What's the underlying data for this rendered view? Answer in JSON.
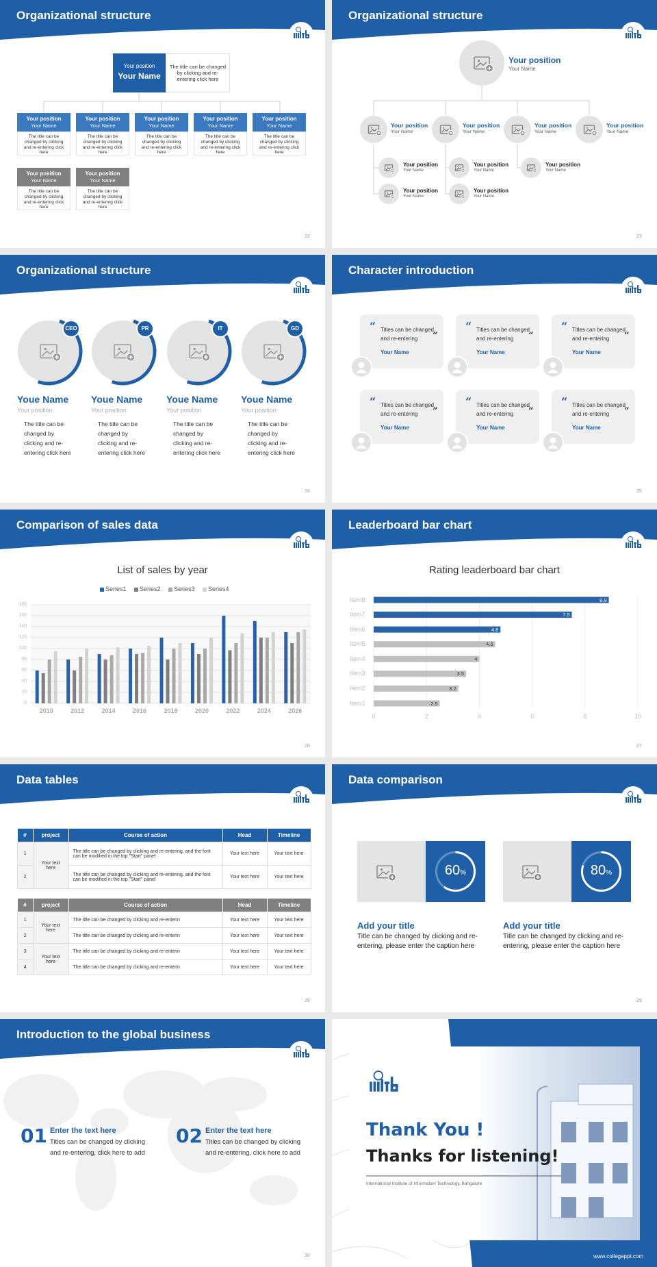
{
  "slides": [
    {
      "title": "Organizational structure",
      "page": "22",
      "head": {
        "position": "Your position",
        "name": "Your Name",
        "caption": "The title can be changed by clicking and re-entering click here"
      },
      "members": [
        {
          "position": "Your position",
          "name": "Your Name",
          "caption": "The title can be changed by clicking and re-entering click here",
          "color": "#3a78c0"
        },
        {
          "position": "Your position",
          "name": "Your Name",
          "caption": "The title can be changed by clicking and re-entering click here",
          "color": "#3a78c0"
        },
        {
          "position": "Your position",
          "name": "Your Name",
          "caption": "The title can be changed by clicking and re-entering click here",
          "color": "#3a78c0"
        },
        {
          "position": "Your position",
          "name": "Your Name",
          "caption": "The title can be changed by clicking and re-entering click here",
          "color": "#3a78c0"
        },
        {
          "position": "Your position",
          "name": "Your Name",
          "caption": "The title can be changed by clicking and re-entering click here",
          "color": "#3a78c0"
        },
        {
          "position": "Your position",
          "name": "Your Name",
          "caption": "The title can be changed by clicking and re-entering click here",
          "color": "#808080"
        },
        {
          "position": "Your position",
          "name": "Your Name",
          "caption": "The title can be changed by clicking and re-entering click here",
          "color": "#808080"
        }
      ]
    },
    {
      "title": "Organizational structure",
      "page": "23",
      "head": {
        "position": "Your position",
        "name": "Your Name"
      },
      "managers": [
        {
          "position": "Your position",
          "name": "Your Name"
        },
        {
          "position": "Your position",
          "name": "Your Name"
        },
        {
          "position": "Your position",
          "name": "Your Name"
        },
        {
          "position": "Your position",
          "name": "Your Name"
        }
      ],
      "staff": [
        {
          "position": "Your position",
          "name": "Your Name"
        },
        {
          "position": "Your position",
          "name": "Your Name"
        },
        {
          "position": "Your position",
          "name": "Your Name"
        },
        {
          "position": "Your position",
          "name": "Your Name"
        },
        {
          "position": "Your position",
          "name": "Your Name"
        }
      ]
    },
    {
      "title": "Organizational structure",
      "page": "24",
      "members": [
        {
          "tag": "CEO",
          "name": "Youe Name",
          "position": "Your position",
          "caption": "The title can be changed by clicking and re-entering click here"
        },
        {
          "tag": "PR",
          "name": "Youe Name",
          "position": "Your position",
          "caption": "The title can be changed by clicking and re-entering click here"
        },
        {
          "tag": "IT",
          "name": "Youe Name",
          "position": "Your position",
          "caption": "The title can be changed by clicking and re-entering click here"
        },
        {
          "tag": "GD",
          "name": "Youe Name",
          "position": "Your position",
          "caption": "The title can be changed by clicking and re-entering click here"
        }
      ]
    },
    {
      "title": "Character introduction",
      "page": "25",
      "quote_open": "“",
      "quote_close": "”",
      "cards": [
        {
          "text": "Titles can be changed and re-entering",
          "name": "Your Name"
        },
        {
          "text": "Titles can be changed and re-entering",
          "name": "Your Name"
        },
        {
          "text": "Titles can be changed and re-entering",
          "name": "Your Name"
        },
        {
          "text": "Titles can be changed and re-entering",
          "name": "Your Name"
        },
        {
          "text": "Titles can be changed and re-entering",
          "name": "Your Name"
        },
        {
          "text": "Titles can be changed and re-entering",
          "name": "Your Name"
        }
      ]
    },
    {
      "title": "Comparison of sales data",
      "page": "26"
    },
    {
      "title": "Leaderboard bar chart",
      "page": "27"
    },
    {
      "title": "Data tables",
      "page": "28",
      "tables": [
        {
          "header": [
            "#",
            "project",
            "Course of action",
            "Head",
            "Timeline"
          ],
          "color": "#1f5fa8",
          "projects": [
            "Your text here"
          ],
          "rows": [
            [
              "1",
              "The title can be changed by clicking and re-entering, and the font can be modified in the top \"Start\" panel",
              "Your text here",
              "Your text here"
            ],
            [
              "2",
              "The title can be changed by clicking and re-entering, and the font can be modified in the top \"Start\" panel",
              "Your text here",
              "Your text here"
            ]
          ]
        },
        {
          "header": [
            "#",
            "project",
            "Course of action",
            "Head",
            "Timeline"
          ],
          "color": "#808080",
          "projects": [
            "Your text here",
            "Your text here"
          ],
          "rows": [
            [
              "1",
              "The title can be changed by clicking and re-enterin",
              "Your text here",
              "Your text here"
            ],
            [
              "2",
              "The title can be changed by clicking and re-enterin",
              "Your text here",
              "Your text here"
            ],
            [
              "3",
              "The title can be changed by clicking and re-enterin",
              "Your text here",
              "Your text here"
            ],
            [
              "4",
              "The title can be changed by clicking and re-enterin",
              "Your text here",
              "Your text here"
            ]
          ]
        }
      ]
    },
    {
      "title": "Data comparison",
      "page": "29",
      "items": [
        {
          "value": 60,
          "unit": "%",
          "title": "Add your title",
          "caption": "Title can be changed by clicking and re-entering, please enter the caption here"
        },
        {
          "value": 80,
          "unit": "%",
          "title": "Add your title",
          "caption": "Title can be changed by clicking and re-entering, please enter the caption here"
        }
      ]
    },
    {
      "title": "Introduction to the global business",
      "page": "30",
      "items": [
        {
          "num": "01",
          "title": "Enter the text here",
          "caption": "Titles can be changed by clicking and re-entering, click here to add"
        },
        {
          "num": "02",
          "title": "Enter the text here",
          "caption": "Titles can be changed by clicking and re-entering, click here to add"
        }
      ]
    },
    {
      "thanks": "Thank You !",
      "subtitle": "Thanks for listening!",
      "institute": "International Institute of Information Technology, Bangalore",
      "url": "www.collegeppt.com"
    }
  ],
  "chart_data": [
    {
      "type": "bar",
      "title": "List of sales by year",
      "categories": [
        "2010",
        "2012",
        "2014",
        "2016",
        "2018",
        "2020",
        "2022",
        "2024",
        "2026"
      ],
      "series": [
        {
          "name": "Series1",
          "color": "#2a62a8",
          "values": [
            60,
            80,
            90,
            100,
            120,
            110,
            160,
            150,
            130
          ]
        },
        {
          "name": "Series2",
          "color": "#7f7f7f",
          "values": [
            55,
            60,
            80,
            90,
            80,
            90,
            97,
            120,
            110
          ]
        },
        {
          "name": "Series3",
          "color": "#a9a9a9",
          "values": [
            80,
            85,
            88,
            92,
            100,
            100,
            110,
            120,
            130
          ]
        },
        {
          "name": "Series4",
          "color": "#d2d2d2",
          "values": [
            95,
            100,
            102,
            105,
            110,
            120,
            128,
            130,
            135
          ]
        }
      ],
      "ylim": [
        0,
        180
      ],
      "yticks": [
        0,
        20,
        40,
        60,
        80,
        100,
        120,
        140,
        160,
        180
      ],
      "grid": true,
      "legend": "top"
    },
    {
      "type": "barh",
      "title": "Rating leaderboard bar chart",
      "categories": [
        "Item1",
        "Item2",
        "Item3",
        "Item4",
        "Item5",
        "Item6",
        "Item7",
        "Item8"
      ],
      "values": [
        2.5,
        3.2,
        3.5,
        4,
        4.6,
        4.8,
        7.5,
        8.9
      ],
      "colors": [
        "#c0c0c0",
        "#c0c0c0",
        "#c0c0c0",
        "#c0c0c0",
        "#c0c0c0",
        "#2a62a8",
        "#2a62a8",
        "#2a62a8"
      ],
      "xlim": [
        0,
        10
      ],
      "xticks": [
        0,
        2,
        4,
        6,
        8,
        10
      ],
      "grid": true
    }
  ]
}
